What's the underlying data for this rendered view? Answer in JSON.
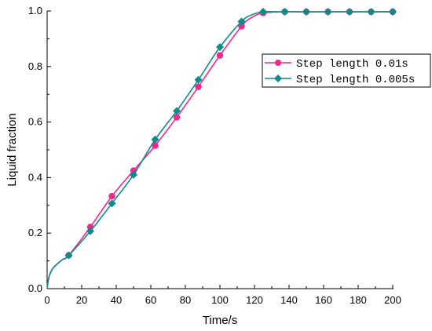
{
  "chart_data": {
    "type": "line",
    "title": "",
    "xlabel": "Time/s",
    "ylabel": "Liquid fraction",
    "xlim": [
      0,
      200
    ],
    "ylim": [
      0,
      1.0
    ],
    "xticks": [
      "0",
      "20",
      "40",
      "60",
      "80",
      "100",
      "120",
      "140",
      "160",
      "180",
      "200"
    ],
    "yticks": [
      "0.0",
      "0.2",
      "0.4",
      "0.6",
      "0.8",
      "1.0"
    ],
    "grid": false,
    "legend_position": "right",
    "series": [
      {
        "name": "Step length 0.01s",
        "color": "#f0288c",
        "marker": "circle",
        "x": [
          0,
          1,
          3,
          6,
          9,
          12.5,
          25,
          37.5,
          50,
          62.5,
          75,
          87.5,
          100,
          112.5,
          118,
          125,
          137.5,
          150,
          162.5,
          175,
          187.5,
          200
        ],
        "y": [
          0.0,
          0.04,
          0.07,
          0.09,
          0.105,
          0.12,
          0.222,
          0.333,
          0.425,
          0.515,
          0.617,
          0.727,
          0.84,
          0.945,
          0.975,
          0.993,
          0.997,
          0.997,
          0.997,
          0.997,
          0.997,
          0.997
        ]
      },
      {
        "name": "Step length 0.005s",
        "color": "#0e8b8b",
        "marker": "diamond",
        "x": [
          0,
          1,
          3,
          6,
          9,
          12.5,
          25,
          37.5,
          50,
          62.5,
          75,
          87.5,
          100,
          112.5,
          118,
          125,
          137.5,
          150,
          162.5,
          175,
          187.5,
          200
        ],
        "y": [
          0.0,
          0.04,
          0.07,
          0.09,
          0.105,
          0.12,
          0.207,
          0.307,
          0.41,
          0.537,
          0.64,
          0.752,
          0.87,
          0.962,
          0.985,
          0.997,
          0.997,
          0.997,
          0.997,
          0.997,
          0.997,
          0.997
        ]
      }
    ]
  }
}
